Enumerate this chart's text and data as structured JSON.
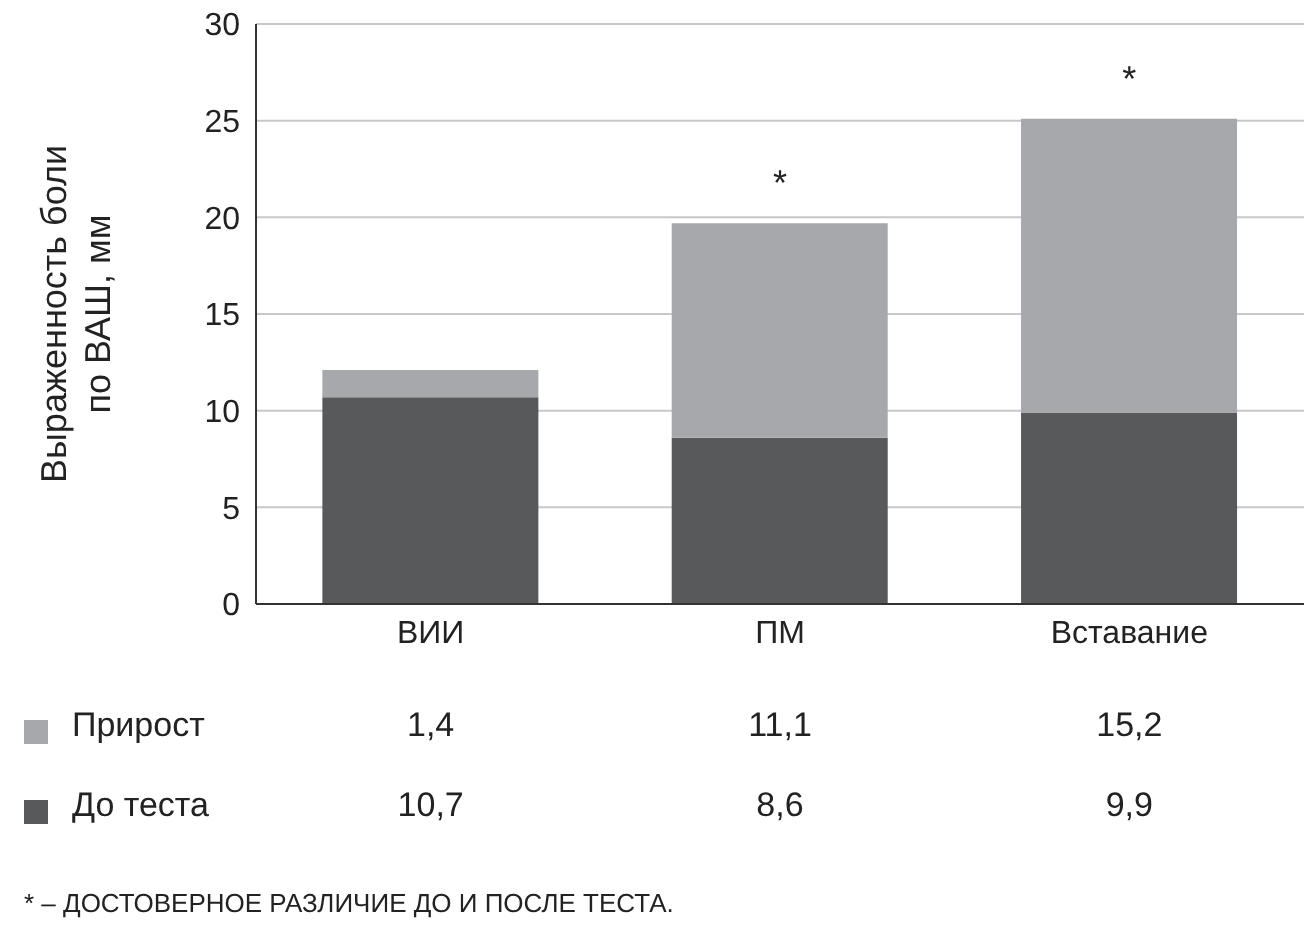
{
  "chart_data": {
    "type": "bar",
    "stacked": true,
    "ylabel": "Выраженность боли по ВАШ, мм",
    "categories": [
      "ВИИ",
      "ПМ",
      "Вставание"
    ],
    "series": [
      {
        "name": "До теста",
        "color": "#58595b",
        "values": [
          10.7,
          8.6,
          9.9
        ],
        "value_labels": [
          "10,7",
          "8,6",
          "9,9"
        ]
      },
      {
        "name": "Прирост",
        "color": "#a7a8ab",
        "values": [
          1.4,
          11.1,
          15.2
        ],
        "value_labels": [
          "1,4",
          "11,1",
          "15,2"
        ]
      }
    ],
    "ylim": [
      0,
      30
    ],
    "yticks": [
      0,
      5,
      10,
      15,
      20,
      25,
      30
    ],
    "grid": "y",
    "legend": "bottom",
    "annotations": [
      {
        "text": "*",
        "x": "ПМ",
        "y": 19.7
      },
      {
        "text": "*",
        "x": "Вставание",
        "y": 25.1
      },
      "* – ДОСТОВЕРНОЕ РАЗЛИЧИЕ ДО И ПОСЛЕ ТЕСТА."
    ]
  }
}
